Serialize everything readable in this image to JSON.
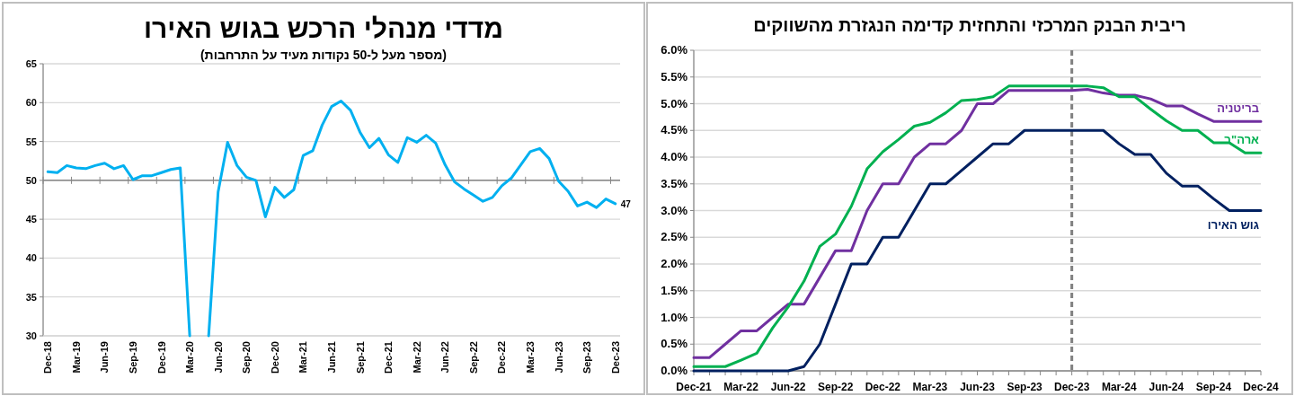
{
  "chart_data": [
    {
      "type": "line",
      "title": "מדדי מנהלי הרכש בגוש האירו",
      "subtitle": "(מספר מעל ל-50 נקודות מעיד על התרחבות)",
      "categories": [
        "Dec-18",
        null,
        null,
        "Mar-19",
        null,
        null,
        "Jun-19",
        null,
        null,
        "Sep-19",
        null,
        null,
        "Dec-19",
        null,
        null,
        "Mar-20",
        null,
        null,
        "Jun-20",
        null,
        null,
        "Sep-20",
        null,
        null,
        "Dec-20",
        null,
        null,
        "Mar-21",
        null,
        null,
        "Jun-21",
        null,
        null,
        "Sep-21",
        null,
        null,
        "Dec-21",
        null,
        null,
        "Mar-22",
        null,
        null,
        "Jun-22",
        null,
        null,
        "Sep-22",
        null,
        null,
        "Dec-22",
        null,
        null,
        "Mar-23",
        null,
        null,
        "Jun-23",
        null,
        null,
        "Sep-23",
        null,
        null,
        "Dec-23"
      ],
      "series": [
        {
          "color": "#00b0f0",
          "values": [
            51.1,
            51.0,
            51.9,
            51.6,
            51.5,
            51.9,
            52.2,
            51.5,
            51.9,
            50.1,
            50.6,
            50.6,
            51.0,
            51.4,
            51.6,
            30,
            null,
            30,
            48.5,
            54.9,
            51.9,
            50.4,
            50.0,
            45.3,
            49.1,
            47.8,
            48.8,
            53.2,
            53.8,
            57.1,
            59.5,
            60.2,
            59.0,
            56.2,
            54.2,
            55.4,
            53.3,
            52.3,
            55.5,
            54.9,
            55.8,
            54.8,
            52.0,
            49.8,
            48.9,
            48.1,
            47.3,
            47.8,
            49.3,
            50.3,
            52.0,
            53.7,
            54.1,
            52.8,
            49.9,
            48.6,
            46.7,
            47.2,
            46.5,
            47.6,
            47.0
          ],
          "value_labels": [
            null,
            null,
            null,
            null,
            null,
            null,
            null,
            null,
            null,
            null,
            null,
            null,
            null,
            null,
            null,
            null,
            null,
            null,
            null,
            null,
            null,
            null,
            null,
            null,
            null,
            null,
            null,
            null,
            null,
            null,
            null,
            null,
            null,
            null,
            null,
            null,
            null,
            null,
            null,
            null,
            null,
            null,
            null,
            null,
            null,
            null,
            null,
            null,
            null,
            null,
            null,
            null,
            null,
            null,
            null,
            null,
            null,
            null,
            null,
            null,
            "47"
          ]
        }
      ],
      "ylim": [
        30,
        65
      ],
      "yticks": [
        30,
        35,
        40,
        45,
        50,
        55,
        60,
        65
      ],
      "grid": "y",
      "legend": false,
      "marker": "none",
      "line_style": "solid",
      "ref_lines": [
        {
          "axis": "y",
          "value": 50,
          "color": "#868686"
        }
      ]
    },
    {
      "type": "line",
      "title": "ריבית הבנק המרכזי והתחזית קדימה הנגזרת מהשווקים",
      "categories": [
        "Dec-21",
        null,
        null,
        "Mar-22",
        null,
        null,
        "Jun-22",
        null,
        null,
        "Sep-22",
        null,
        null,
        "Dec-22",
        null,
        null,
        "Mar-23",
        null,
        null,
        "Jun-23",
        null,
        null,
        "Sep-23",
        null,
        null,
        "Dec-23",
        null,
        null,
        "Mar-24",
        null,
        null,
        "Jun-24",
        null,
        null,
        "Sep-24",
        null,
        null,
        "Dec-24"
      ],
      "series": [
        {
          "name": "בריטניה",
          "color": "#7030a0",
          "values": [
            0.25,
            0.25,
            0.5,
            0.75,
            0.75,
            1.0,
            1.25,
            1.25,
            1.75,
            2.25,
            2.25,
            3.0,
            3.5,
            3.5,
            4.0,
            4.25,
            4.25,
            4.5,
            5.0,
            5.0,
            5.25,
            5.25,
            5.25,
            5.25,
            5.25,
            5.27,
            5.2,
            5.16,
            5.16,
            5.09,
            4.96,
            4.96,
            4.81,
            4.67,
            4.67,
            4.67,
            4.67
          ]
        },
        {
          "name": "ארה\"ב",
          "color": "#00b050",
          "values": [
            0.08,
            0.08,
            0.08,
            0.2,
            0.33,
            0.8,
            1.2,
            1.68,
            2.33,
            2.56,
            3.08,
            3.78,
            4.1,
            4.33,
            4.58,
            4.65,
            4.83,
            5.06,
            5.08,
            5.13,
            5.33,
            5.33,
            5.33,
            5.33,
            5.33,
            5.33,
            5.3,
            5.13,
            5.13,
            4.9,
            4.68,
            4.5,
            4.5,
            4.27,
            4.27,
            4.08,
            4.08
          ]
        },
        {
          "name": "גוש האירו",
          "color": "#002060",
          "values": [
            0,
            0,
            0,
            0,
            0,
            0,
            0,
            0.08,
            0.5,
            1.25,
            2.0,
            2.0,
            2.5,
            2.5,
            3.0,
            3.5,
            3.5,
            3.75,
            4.0,
            4.25,
            4.25,
            4.5,
            4.5,
            4.5,
            4.5,
            4.5,
            4.5,
            4.25,
            4.05,
            4.05,
            3.7,
            3.46,
            3.46,
            3.22,
            3.0,
            3.0,
            3.0
          ]
        }
      ],
      "ylim": [
        0,
        6
      ],
      "yticks": [
        {
          "value": 0,
          "label": "0.0%"
        },
        {
          "value": 0.5,
          "label": "0.5%"
        },
        {
          "value": 1,
          "label": "1.0%"
        },
        {
          "value": 1.5,
          "label": "1.5%"
        },
        {
          "value": 2,
          "label": "2.0%"
        },
        {
          "value": 2.5,
          "label": "2.5%"
        },
        {
          "value": 3,
          "label": "3.0%"
        },
        {
          "value": 3.5,
          "label": "3.5%"
        },
        {
          "value": 4,
          "label": "4.0%"
        },
        {
          "value": 4.5,
          "label": "4.5%"
        },
        {
          "value": 5,
          "label": "5.0%"
        },
        {
          "value": 5.5,
          "label": "5.5%"
        },
        {
          "value": 6,
          "label": "6.0%"
        }
      ],
      "grid": "y",
      "legend": false,
      "marker": "none",
      "line_style": "solid",
      "ref_lines": [
        {
          "axis": "x",
          "value": "Dec-23",
          "color": "#808080",
          "line_style": "dashed"
        }
      ]
    }
  ]
}
